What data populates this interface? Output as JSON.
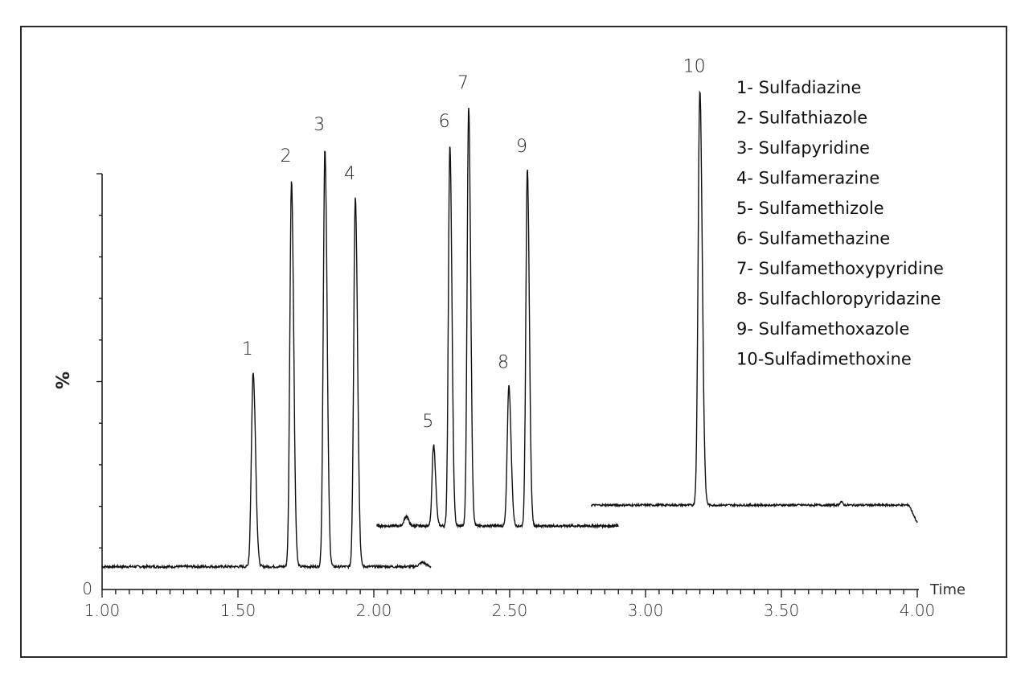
{
  "chart_data": {
    "type": "line",
    "title": "",
    "xlabel": "Time",
    "ylabel": "%",
    "xlim": [
      1.0,
      4.0
    ],
    "ylim": [
      0,
      100
    ],
    "x_ticks": [
      "1.00",
      "1.50",
      "2.00",
      "2.50",
      "3.00",
      "3.50",
      "4.00"
    ],
    "y_tick_labels": [
      "0"
    ],
    "grid": false,
    "legend_position": "top-right",
    "colors": {
      "trace": "#111111",
      "frame": "#2a2a2a"
    },
    "series": [
      {
        "x_range": [
          1.0,
          2.21
        ],
        "baseline": 5.5,
        "noise": 0.3,
        "peaks": [
          {
            "label": "1",
            "x": 1.556,
            "y": 52.2,
            "sigma": 0.0065
          },
          {
            "label": "2",
            "x": 1.697,
            "y": 98.6,
            "sigma": 0.006
          },
          {
            "label": "3",
            "x": 1.82,
            "y": 106.2,
            "sigma": 0.006
          },
          {
            "label": "4",
            "x": 1.932,
            "y": 94.4,
            "sigma": 0.006
          }
        ],
        "bumps": [
          {
            "x": 2.18,
            "y": 1.0,
            "sigma": 0.012
          }
        ]
      },
      {
        "x_range": [
          2.01,
          2.9
        ],
        "baseline": 15.3,
        "noise": 0.3,
        "peaks": [
          {
            "label": "5",
            "x": 2.22,
            "y": 34.8,
            "sigma": 0.0055
          },
          {
            "label": "6",
            "x": 2.28,
            "y": 107.0,
            "sigma": 0.0055
          },
          {
            "label": "7",
            "x": 2.349,
            "y": 116.2,
            "sigma": 0.0055
          },
          {
            "label": "8",
            "x": 2.497,
            "y": 49.0,
            "sigma": 0.006
          },
          {
            "label": "9",
            "x": 2.565,
            "y": 101.0,
            "sigma": 0.0055
          }
        ],
        "bumps": [
          {
            "x": 2.12,
            "y": 2.3,
            "sigma": 0.008
          }
        ]
      },
      {
        "x_range": [
          2.8,
          4.0
        ],
        "baseline": 20.3,
        "noise": 0.25,
        "peaks": [
          {
            "label": "10",
            "x": 3.2,
            "y": 120.2,
            "sigma": 0.0065
          }
        ],
        "bumps": [
          {
            "x": 3.72,
            "y": 0.8,
            "sigma": 0.005
          }
        ]
      }
    ],
    "legend": [
      "1- Sulfadiazine",
      "2- Sulfathiazole",
      "3- Sulfapyridine",
      "4- Sulfamerazine",
      "5- Sulfamethizole",
      "6- Sulfamethazine",
      "7- Sulfamethoxypyridine",
      "8- Sulfachloropyridazine",
      "9- Sulfamethoxazole",
      "10-Sulfadimethoxine"
    ]
  }
}
